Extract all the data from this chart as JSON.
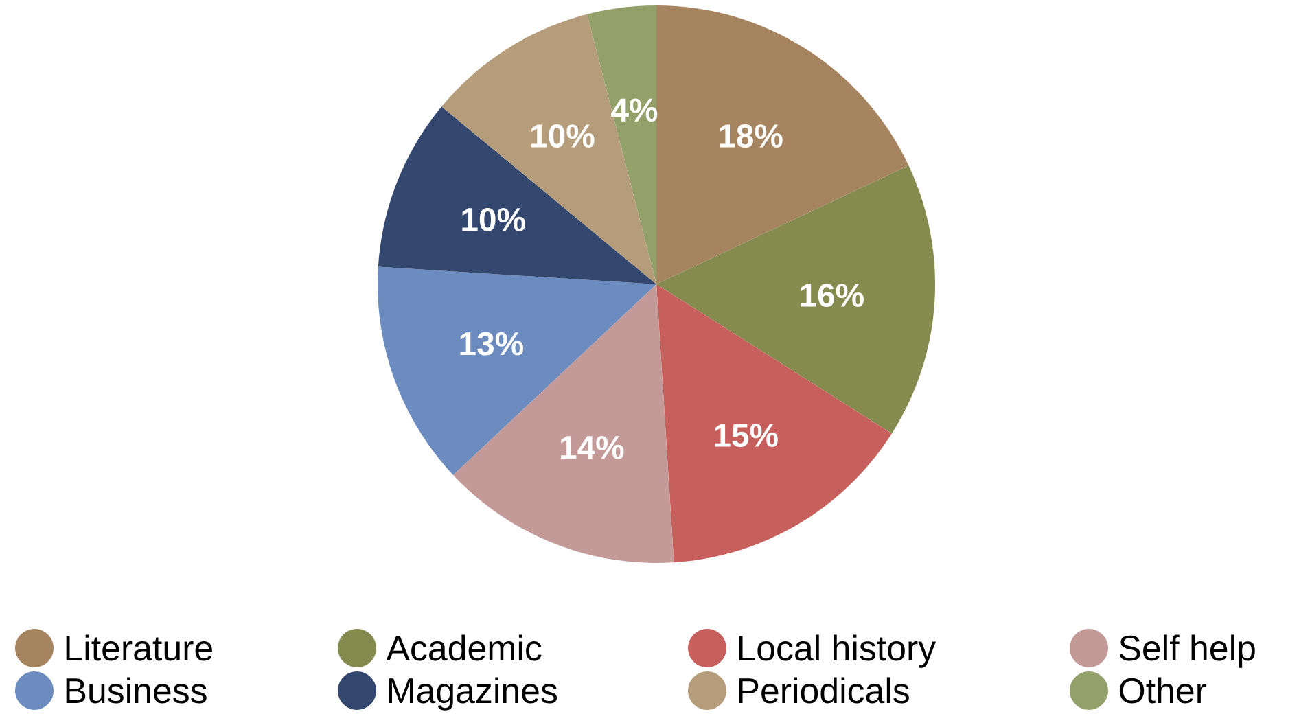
{
  "chart_data": {
    "type": "pie",
    "categories": [
      "Literature",
      "Academic",
      "Local history",
      "Self help",
      "Business",
      "Magazines",
      "Periodicals",
      "Other"
    ],
    "values": [
      18,
      16,
      15,
      14,
      13,
      10,
      10,
      4
    ],
    "value_labels": [
      "18%",
      "16%",
      "15%",
      "14%",
      "13%",
      "10%",
      "10%",
      "4%"
    ],
    "colors": [
      "#a6845f",
      "#858a4e",
      "#c7605d",
      "#c49a99",
      "#6c8cc0",
      "#34476e",
      "#b59d7b",
      "#93a06a"
    ],
    "legend": "bottom"
  }
}
